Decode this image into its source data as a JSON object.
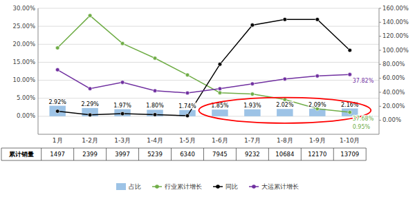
{
  "chart_data": {
    "type": "bar",
    "categories": [
      "1月",
      "1-2月",
      "1-3月",
      "1-4月",
      "1-5月",
      "1-6月",
      "1-7月",
      "1-8月",
      "1-9月",
      "1-10月"
    ],
    "series": [
      {
        "name": "占比",
        "type": "bar",
        "color": "#9DC3E6",
        "values": [
          2.92,
          2.29,
          1.97,
          1.8,
          1.74,
          1.85,
          1.93,
          2.02,
          2.09,
          2.16
        ],
        "value_labels": [
          "2.92%",
          "2.29%",
          "1.97%",
          "1.80%",
          "1.74%",
          "1.85%",
          "1.93%",
          "2.02%",
          "2.09%",
          "2.16%"
        ],
        "data_labels": true
      },
      {
        "name": "行业累计增长",
        "type": "line",
        "color": "#70AD47",
        "marker": "circle",
        "values": [
          18.99,
          27.97,
          20.22,
          16.13,
          11.48,
          6.53,
          6.17,
          4.66,
          2.09,
          1.1
        ]
      },
      {
        "name": "同比",
        "type": "line",
        "color": "#000000",
        "marker": "circle",
        "axis": "y2",
        "values": [
          12.92,
          7.67,
          9.42,
          8.09,
          6.48,
          80.0,
          136.0,
          144.0,
          144.0,
          100.0
        ]
      },
      {
        "name": "大运累计增长",
        "type": "line",
        "color": "#7030A0",
        "marker": "circle",
        "values": [
          12.92,
          7.67,
          9.42,
          7.09,
          6.48,
          7.66,
          9.02,
          10.35,
          11.19,
          11.61
        ]
      }
    ],
    "ylim": [
      -5.0,
      30.0
    ],
    "yticks": [
      {
        "value": 0,
        "label": "0.00%"
      },
      {
        "value": 5,
        "label": "5.00%"
      },
      {
        "value": 10,
        "label": "10.00%"
      },
      {
        "value": 15,
        "label": "15.00%"
      },
      {
        "value": 20,
        "label": "20.00%"
      },
      {
        "value": 25,
        "label": "25.00%"
      },
      {
        "value": 30,
        "label": "30.00%"
      }
    ],
    "y2lim": [
      -20.0,
      160.0
    ],
    "y2ticks": [
      {
        "value": 0,
        "label": "0.00%"
      },
      {
        "value": 20,
        "label": "20.00%"
      },
      {
        "value": 40,
        "label": "40.00%"
      },
      {
        "value": 60,
        "label": "60.00%"
      },
      {
        "value": 80,
        "label": "80.00%"
      },
      {
        "value": 100,
        "label": "100.00%"
      },
      {
        "value": 120,
        "label": "120.00%"
      },
      {
        "value": 140,
        "label": "140.00%"
      },
      {
        "value": 160,
        "label": "160.00%"
      }
    ],
    "grid": true,
    "legend": "bottom",
    "annotations": [
      {
        "text": "37.68%",
        "series": "行业累计增长"
      },
      {
        "text": "37.82%",
        "series": "大运累计增长"
      },
      {
        "text": "0.95%",
        "series": "行业累计增长"
      }
    ],
    "highlight": {
      "categories": [
        "1-6月",
        "1-10月"
      ],
      "color": "red"
    },
    "table": {
      "label": "累计销量",
      "values": [
        1497,
        2399,
        3997,
        5239,
        6340,
        7945,
        9232,
        10684,
        12170,
        13709
      ]
    }
  }
}
